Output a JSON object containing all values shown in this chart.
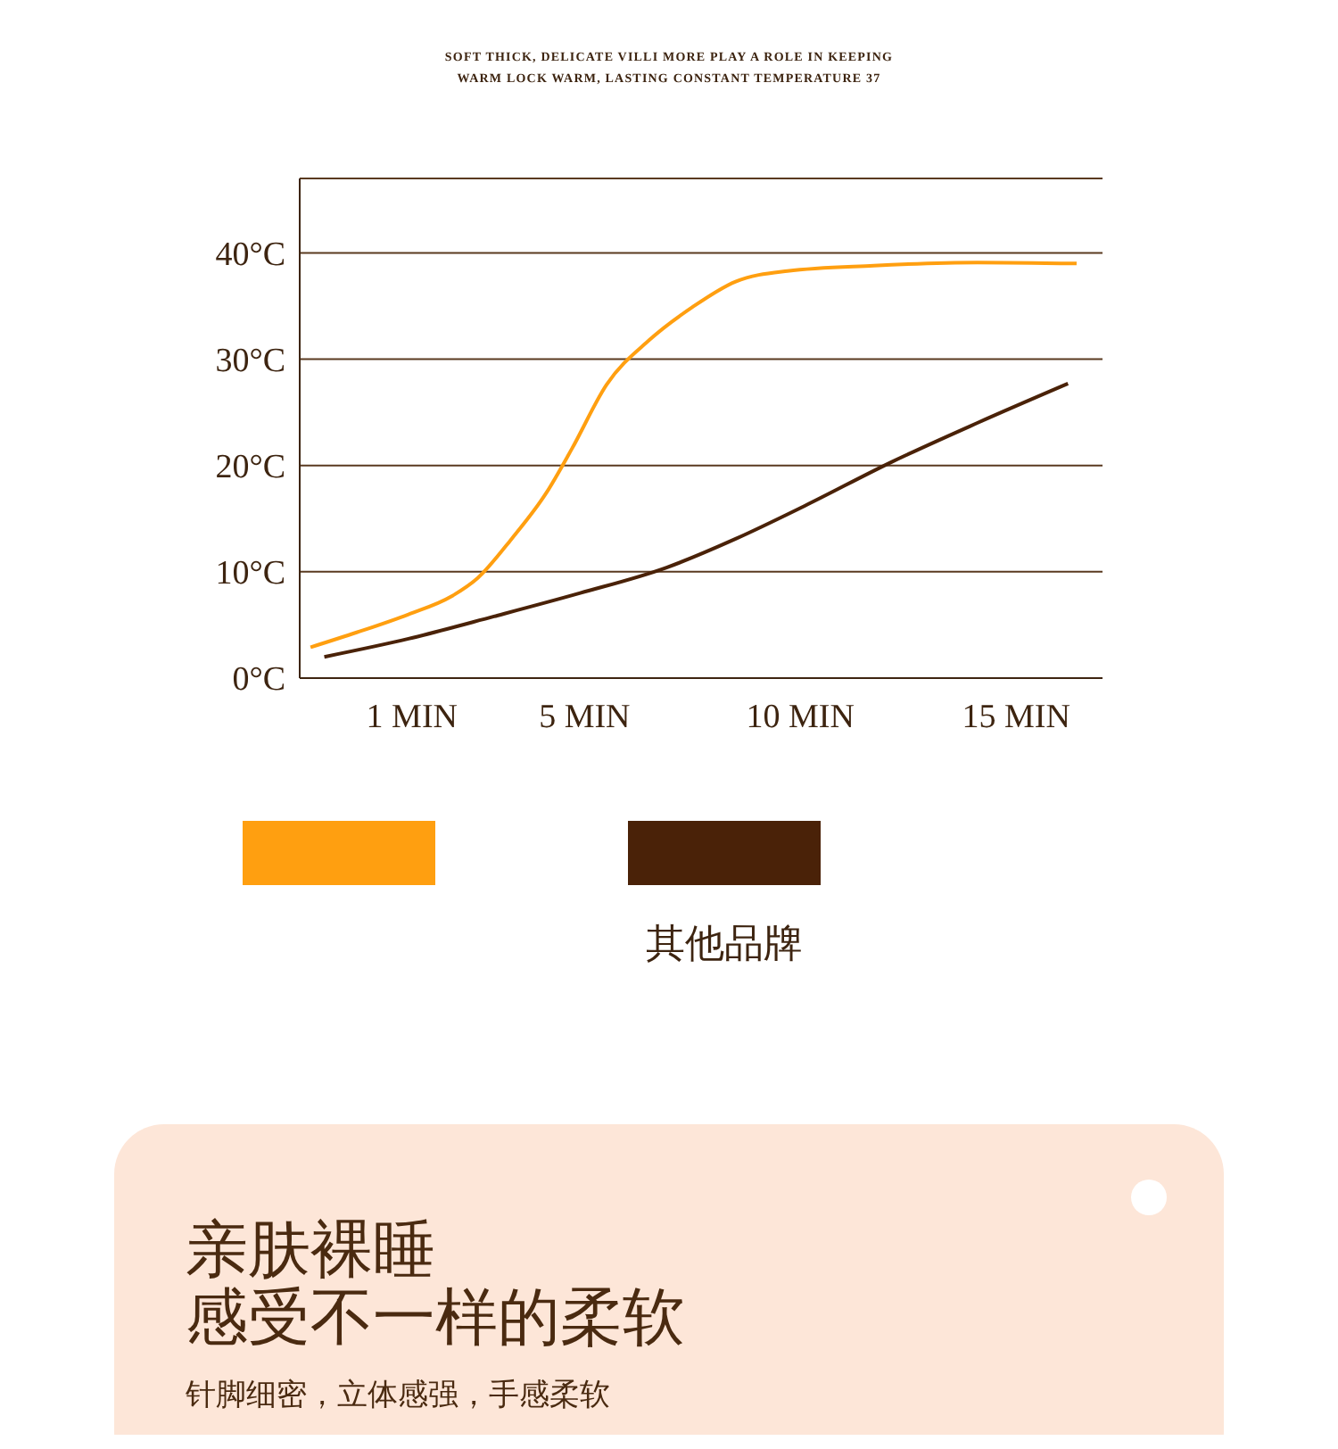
{
  "chart_data": {
    "type": "line",
    "subtitle": "SOFT THICK, DELICATE VILLI MORE PLAY A ROLE IN KEEPING WARM LOCK WARM, LASTING CONSTANT TEMPERATURE 37",
    "series": [
      {
        "color": "#ff9f10",
        "x": [
          -1.35,
          -0.28,
          0.92,
          1.92,
          2.52,
          3.31,
          4.11,
          4.71,
          5.51,
          6.5,
          7.5,
          8.5,
          9.7,
          11.7,
          14.1,
          16.4
        ],
        "values": [
          2.9,
          4.3,
          6.0,
          7.7,
          9.4,
          13.1,
          17.4,
          21.6,
          27.6,
          31.8,
          34.9,
          37.3,
          38.3,
          38.8,
          39.1,
          39.0
        ]
      },
      {
        "name": "其他品牌",
        "color": "#4a2208",
        "x": [
          -1.03,
          0.92,
          2.9,
          4.9,
          6.9,
          8.5,
          10.1,
          12.1,
          14.1,
          16.2
        ],
        "values": [
          2.0,
          3.7,
          5.8,
          8.0,
          10.4,
          13.1,
          16.2,
          20.3,
          24.0,
          27.7
        ]
      }
    ],
    "xlim": [
      -1.6,
      17
    ],
    "xticks": [
      {
        "value": 1,
        "label": "1 MIN"
      },
      {
        "value": 5,
        "label": "5 MIN"
      },
      {
        "value": 10,
        "label": "10 MIN"
      },
      {
        "value": 15,
        "label": "15 MIN"
      }
    ],
    "ylim": [
      0,
      47
    ],
    "yticks": [
      {
        "value": 0,
        "label": "0°C"
      },
      {
        "value": 10,
        "label": "10°C"
      },
      {
        "value": 20,
        "label": "20°C"
      },
      {
        "value": 30,
        "label": "30°C"
      },
      {
        "value": 40,
        "label": "40°C"
      }
    ],
    "grid": "y",
    "legend": "bottom",
    "marker": "none",
    "line_style": "solid",
    "annotations": [
      "亲肤裸睡",
      "感受不一样的柔软",
      "针脚细密，立体感强，手感柔软"
    ]
  }
}
